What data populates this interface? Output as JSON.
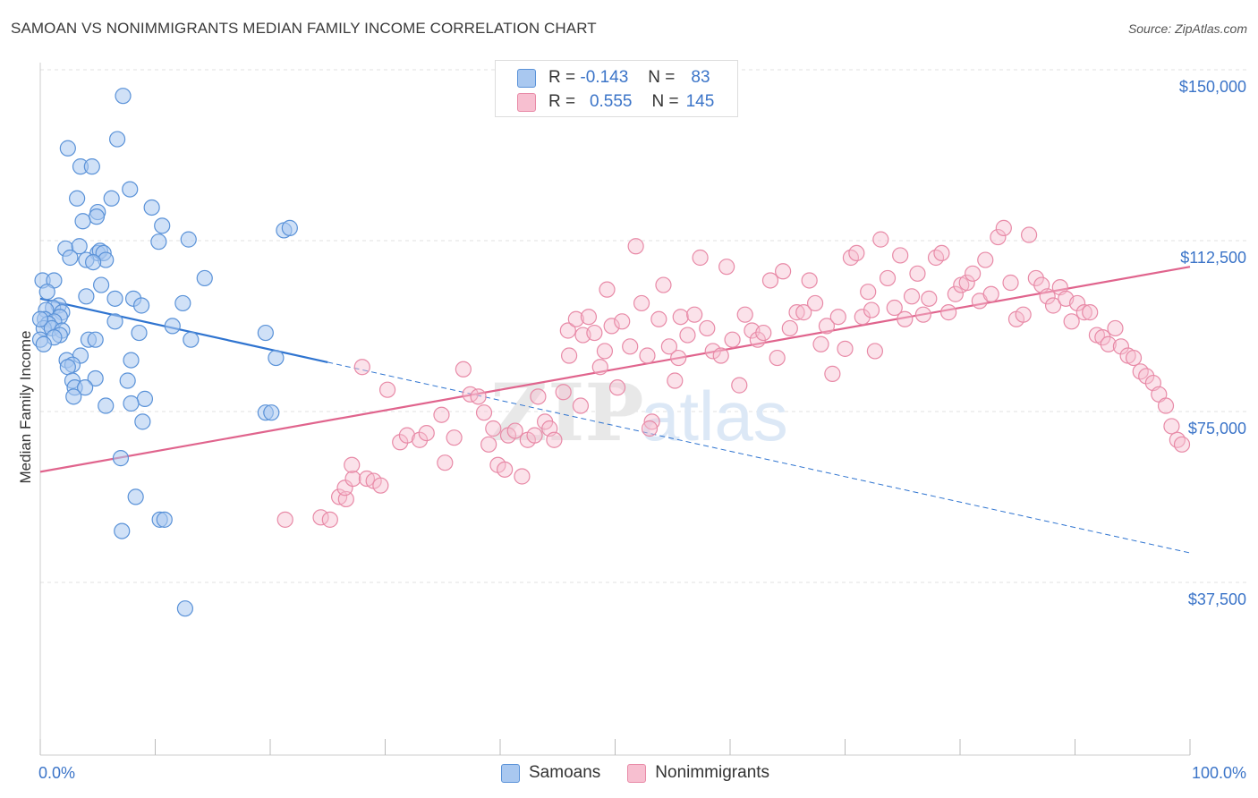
{
  "title": "SAMOAN VS NONIMMIGRANTS MEDIAN FAMILY INCOME CORRELATION CHART",
  "source": "Source: ZipAtlas.com",
  "colors": {
    "samoan_fill": "#a9c8f0",
    "samoan_stroke": "#5a92d8",
    "samoan_line": "#2f74d0",
    "nonimm_fill": "#f7bfd0",
    "nonimm_stroke": "#e88aa7",
    "nonimm_line": "#e0648d",
    "tick_label": "#3b74c8",
    "grid": "#e2e2e2"
  },
  "legend": {
    "r_label": "R =",
    "n_label": "N =",
    "samoan_r": "-0.143",
    "samoan_n": "83",
    "nonimm_r": "0.555",
    "nonimm_n": "145"
  },
  "bottom_legend": {
    "samoans": "Samoans",
    "nonimmigrants": "Nonimmigrants"
  },
  "watermark": {
    "zip": "ZIP",
    "atlas": "atlas"
  },
  "chart_data": {
    "type": "scatter",
    "title": "SAMOAN VS NONIMMIGRANTS MEDIAN FAMILY INCOME CORRELATION CHART",
    "ylabel": "Median Family Income",
    "xlabel": "",
    "x_tick_labels": [
      "0.0%",
      "100.0%"
    ],
    "y_ticks": [
      37500,
      75000,
      112500,
      150000
    ],
    "y_tick_labels": [
      "$37,500",
      "$75,000",
      "$112,500",
      "$150,000"
    ],
    "xlim": [
      0,
      100
    ],
    "ylim": [
      5000,
      155000
    ],
    "grid": true,
    "legend_position": "top-center",
    "series": [
      {
        "name": "Samoans",
        "r": -0.143,
        "n": 83,
        "trend": {
          "x": [
            0,
            100
          ],
          "y": [
            103500,
            47700
          ],
          "solid_until_x": 25
        },
        "points": [
          [
            7.2,
            148000
          ],
          [
            6.7,
            138500
          ],
          [
            2.4,
            136500
          ],
          [
            3.5,
            132500
          ],
          [
            4.5,
            132500
          ],
          [
            7.8,
            127500
          ],
          [
            3.2,
            125500
          ],
          [
            6.2,
            125500
          ],
          [
            5.0,
            122500
          ],
          [
            4.9,
            121500
          ],
          [
            9.7,
            123500
          ],
          [
            3.7,
            120500
          ],
          [
            10.6,
            119500
          ],
          [
            21.2,
            118500
          ],
          [
            21.7,
            119000
          ],
          [
            12.9,
            116500
          ],
          [
            10.3,
            116000
          ],
          [
            2.2,
            114500
          ],
          [
            3.4,
            115000
          ],
          [
            5.0,
            113500
          ],
          [
            5.2,
            114000
          ],
          [
            5.5,
            113500
          ],
          [
            2.6,
            112500
          ],
          [
            5.7,
            112000
          ],
          [
            4.0,
            112000
          ],
          [
            4.6,
            111500
          ],
          [
            0.2,
            107500
          ],
          [
            1.2,
            107500
          ],
          [
            14.3,
            108000
          ],
          [
            5.3,
            106500
          ],
          [
            0.6,
            105000
          ],
          [
            4.0,
            104000
          ],
          [
            6.5,
            103500
          ],
          [
            8.1,
            103500
          ],
          [
            12.4,
            102500
          ],
          [
            8.8,
            102000
          ],
          [
            1.6,
            102000
          ],
          [
            1.1,
            101500
          ],
          [
            0.5,
            101000
          ],
          [
            1.9,
            100500
          ],
          [
            1.7,
            99500
          ],
          [
            0.4,
            99000
          ],
          [
            1.2,
            98500
          ],
          [
            0.7,
            98000
          ],
          [
            6.5,
            98500
          ],
          [
            11.5,
            97500
          ],
          [
            0.3,
            97000
          ],
          [
            1.0,
            97000
          ],
          [
            1.9,
            96500
          ],
          [
            8.6,
            96000
          ],
          [
            19.6,
            96000
          ],
          [
            1.7,
            95500
          ],
          [
            1.2,
            95000
          ],
          [
            4.2,
            94500
          ],
          [
            4.8,
            94500
          ],
          [
            13.1,
            94500
          ],
          [
            3.5,
            91000
          ],
          [
            20.5,
            90500
          ],
          [
            2.3,
            90000
          ],
          [
            7.9,
            90000
          ],
          [
            2.8,
            89000
          ],
          [
            2.4,
            88500
          ],
          [
            4.8,
            86000
          ],
          [
            7.6,
            85500
          ],
          [
            2.8,
            85500
          ],
          [
            3.0,
            84000
          ],
          [
            3.9,
            84000
          ],
          [
            2.9,
            82000
          ],
          [
            9.1,
            81500
          ],
          [
            7.9,
            80500
          ],
          [
            5.7,
            80000
          ],
          [
            19.6,
            78500
          ],
          [
            20.1,
            78500
          ],
          [
            8.9,
            76500
          ],
          [
            0.0,
            99000
          ],
          [
            0.0,
            94500
          ],
          [
            7.0,
            68500
          ],
          [
            8.3,
            60000
          ],
          [
            10.4,
            55000
          ],
          [
            10.8,
            55000
          ],
          [
            7.1,
            52500
          ],
          [
            12.6,
            35500
          ],
          [
            0.3,
            93500
          ]
        ]
      },
      {
        "name": "Nonimmigrants",
        "r": 0.555,
        "n": 145,
        "trend": {
          "x": [
            0,
            100
          ],
          "y": [
            65500,
            110500
          ]
        },
        "points": [
          [
            21.3,
            55000
          ],
          [
            24.4,
            55500
          ],
          [
            25.2,
            55000
          ],
          [
            26.0,
            60000
          ],
          [
            26.6,
            59500
          ],
          [
            26.5,
            62000
          ],
          [
            27.2,
            64000
          ],
          [
            28.4,
            64000
          ],
          [
            29.0,
            63500
          ],
          [
            29.6,
            62500
          ],
          [
            27.1,
            67000
          ],
          [
            30.2,
            83500
          ],
          [
            31.3,
            72000
          ],
          [
            31.9,
            73500
          ],
          [
            33.0,
            72500
          ],
          [
            33.6,
            74000
          ],
          [
            34.9,
            78000
          ],
          [
            35.2,
            67500
          ],
          [
            36.0,
            73000
          ],
          [
            36.8,
            88000
          ],
          [
            37.4,
            82500
          ],
          [
            38.1,
            82000
          ],
          [
            38.6,
            78500
          ],
          [
            39.0,
            71500
          ],
          [
            39.4,
            75000
          ],
          [
            39.8,
            67000
          ],
          [
            40.4,
            66000
          ],
          [
            40.7,
            73500
          ],
          [
            41.3,
            74500
          ],
          [
            41.9,
            64500
          ],
          [
            42.4,
            72500
          ],
          [
            43.0,
            73500
          ],
          [
            43.3,
            82000
          ],
          [
            43.9,
            76500
          ],
          [
            44.3,
            75000
          ],
          [
            44.7,
            72500
          ],
          [
            45.5,
            83000
          ],
          [
            45.9,
            96500
          ],
          [
            46.6,
            99000
          ],
          [
            47.2,
            95500
          ],
          [
            47.7,
            99500
          ],
          [
            48.2,
            96000
          ],
          [
            48.7,
            88500
          ],
          [
            49.1,
            92000
          ],
          [
            49.7,
            97500
          ],
          [
            50.2,
            84000
          ],
          [
            50.6,
            98500
          ],
          [
            51.3,
            93000
          ],
          [
            51.8,
            115000
          ],
          [
            52.3,
            102500
          ],
          [
            52.8,
            91000
          ],
          [
            53.2,
            76500
          ],
          [
            53.8,
            99000
          ],
          [
            54.2,
            106500
          ],
          [
            54.7,
            93000
          ],
          [
            55.2,
            85500
          ],
          [
            55.7,
            99500
          ],
          [
            56.3,
            95500
          ],
          [
            56.9,
            100000
          ],
          [
            57.4,
            112500
          ],
          [
            58.0,
            97000
          ],
          [
            58.5,
            92000
          ],
          [
            59.2,
            91000
          ],
          [
            59.7,
            110500
          ],
          [
            60.2,
            94500
          ],
          [
            60.8,
            84500
          ],
          [
            61.3,
            100000
          ],
          [
            61.9,
            96500
          ],
          [
            62.4,
            94500
          ],
          [
            62.9,
            96000
          ],
          [
            63.5,
            107500
          ],
          [
            64.1,
            90500
          ],
          [
            64.6,
            109500
          ],
          [
            65.2,
            97000
          ],
          [
            65.8,
            100500
          ],
          [
            66.4,
            100500
          ],
          [
            66.9,
            107500
          ],
          [
            67.4,
            102500
          ],
          [
            67.9,
            93500
          ],
          [
            68.4,
            97500
          ],
          [
            68.9,
            87000
          ],
          [
            69.4,
            99500
          ],
          [
            70.0,
            92500
          ],
          [
            70.5,
            112500
          ],
          [
            71.0,
            113500
          ],
          [
            71.5,
            99500
          ],
          [
            72.0,
            105000
          ],
          [
            72.6,
            92000
          ],
          [
            73.1,
            116500
          ],
          [
            73.7,
            108000
          ],
          [
            74.3,
            101500
          ],
          [
            74.8,
            113000
          ],
          [
            75.2,
            99000
          ],
          [
            75.8,
            104000
          ],
          [
            76.3,
            109000
          ],
          [
            76.8,
            100000
          ],
          [
            77.3,
            103500
          ],
          [
            77.9,
            112500
          ],
          [
            78.4,
            113500
          ],
          [
            79.0,
            100500
          ],
          [
            79.6,
            104500
          ],
          [
            80.1,
            106500
          ],
          [
            80.6,
            107000
          ],
          [
            81.1,
            109000
          ],
          [
            81.7,
            103000
          ],
          [
            82.2,
            112000
          ],
          [
            82.7,
            104500
          ],
          [
            83.3,
            117000
          ],
          [
            83.8,
            119000
          ],
          [
            84.4,
            107000
          ],
          [
            84.9,
            99000
          ],
          [
            85.5,
            100000
          ],
          [
            86.0,
            117500
          ],
          [
            86.6,
            108000
          ],
          [
            87.1,
            106500
          ],
          [
            87.6,
            104000
          ],
          [
            88.1,
            102000
          ],
          [
            88.7,
            106000
          ],
          [
            89.2,
            103500
          ],
          [
            89.7,
            98500
          ],
          [
            90.2,
            102500
          ],
          [
            90.8,
            100500
          ],
          [
            91.3,
            100500
          ],
          [
            91.9,
            95500
          ],
          [
            92.4,
            95000
          ],
          [
            92.9,
            93500
          ],
          [
            93.5,
            97000
          ],
          [
            94.0,
            93000
          ],
          [
            94.6,
            91000
          ],
          [
            95.1,
            90500
          ],
          [
            95.7,
            87500
          ],
          [
            96.2,
            86500
          ],
          [
            96.8,
            85000
          ],
          [
            97.3,
            82500
          ],
          [
            97.9,
            80000
          ],
          [
            98.4,
            75500
          ],
          [
            98.9,
            72500
          ],
          [
            99.3,
            71500
          ],
          [
            49.3,
            105500
          ],
          [
            55.5,
            90500
          ],
          [
            72.3,
            101000
          ],
          [
            53.0,
            75000
          ],
          [
            46.0,
            91000
          ],
          [
            28.0,
            88500
          ],
          [
            47.0,
            80000
          ]
        ]
      }
    ]
  }
}
